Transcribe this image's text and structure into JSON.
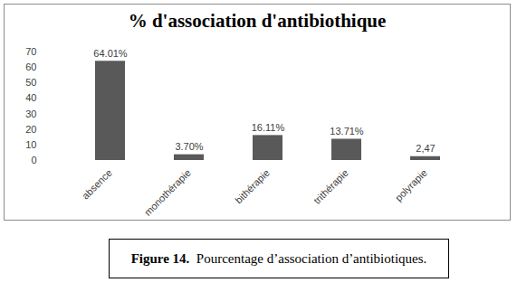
{
  "chart_data": {
    "type": "bar",
    "title": "% d'association d'antibiothique",
    "caption": "Figure 14.  Pourcentage d’association d’antibiotiques.",
    "categories": [
      "absence",
      "monothérapie",
      "bithérapie",
      "trithérapie",
      "polyrapie"
    ],
    "values": [
      64.01,
      3.7,
      16.11,
      13.71,
      2.47
    ],
    "value_labels": [
      "64.01%",
      "3.70%",
      "16.11%",
      "13.71%",
      "2,47"
    ],
    "data_labels": true,
    "color": "#595959",
    "ylim": [
      0,
      70
    ],
    "yticks": [
      0,
      10,
      20,
      30,
      40,
      50,
      60,
      70
    ],
    "grid": false
  }
}
